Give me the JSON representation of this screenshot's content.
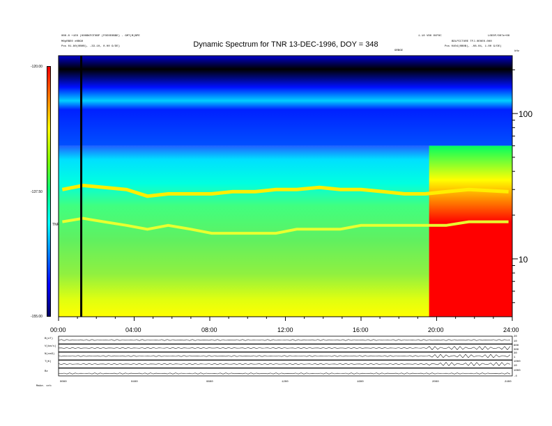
{
  "header": {
    "left_line1": "000.0 +1E0 (000BKFOT0BP (F0E0E0BBE) - GMT(M)BPE",
    "left_line2": "M0pRBE0 e0BG0",
    "left_line3": "Pos 01.80(0B0B), -33.10, 0.00 G/DE)",
    "right_line1": "1.10 V00 0VF0C",
    "right_line2": "L0E0F/007e+00",
    "right_line3": "BDLPICTURE TFJ.0E0E0.000",
    "right_line4": "Pos 0404(0B0B), -08.04, 1.00 G/DE)",
    "top_small_label": "GRBGE",
    "corner_label": "kHz"
  },
  "colorbar": {
    "ticks": [
      "-120.00",
      "-137.50",
      "-155.00"
    ],
    "label": "TNR",
    "colors": [
      "#000066",
      "#0000ff",
      "#0080ff",
      "#00ffff",
      "#00ff80",
      "#80ff00",
      "#ffff00",
      "#ff8000",
      "#ff0000"
    ]
  },
  "chart_data": [
    {
      "type": "heatmap",
      "title": "Dynamic Spectrum for TNR 13-DEC-1996, DOY = 348",
      "xlabel": "",
      "ylabel": "kHz",
      "x_tick_labels": [
        "00:00",
        "04:00",
        "08:00",
        "12:00",
        "16:00",
        "20:00",
        "24:00"
      ],
      "x_range_hours": [
        0,
        24
      ],
      "y_scale": "log",
      "y_tick_labels": [
        "100",
        "10"
      ],
      "y_range_khz": [
        4,
        250
      ],
      "z_range": [
        -155.0,
        -120.0
      ],
      "z_label": "TNR",
      "features": {
        "upper_band_khz_above": 60,
        "upper_band_level": "low (blue/black)",
        "emission_line_high_khz": [
          30,
          32,
          31,
          30,
          27,
          28,
          28,
          28,
          29,
          29,
          30,
          30,
          31,
          30,
          30,
          29,
          28,
          28,
          29,
          30,
          29
        ],
        "emission_line_low_khz": [
          18,
          19,
          18,
          17,
          16,
          17,
          16,
          15,
          15,
          15,
          15,
          16,
          16,
          16,
          17,
          17,
          17,
          17,
          17,
          18,
          18
        ],
        "line_times_hours": [
          0.2,
          1.3,
          2.4,
          3.6,
          4.7,
          5.8,
          7.0,
          8.1,
          9.2,
          10.4,
          11.5,
          12.6,
          13.8,
          14.9,
          16.0,
          17.2,
          18.3,
          19.4,
          20.5,
          21.7,
          23.8
        ],
        "intense_region_hours": [
          19.6,
          24.0
        ],
        "black_line_hours": 1.2
      }
    },
    {
      "type": "line",
      "panels": [
        {
          "left_label": "B(nT)",
          "right_ticks": [
            "20",
            "10"
          ]
        },
        {
          "left_label": "V(km/s)",
          "right_ticks": [
            "600",
            "300"
          ]
        },
        {
          "left_label": "N(cm3)",
          "right_ticks": [
            "30",
            "1"
          ]
        },
        {
          "left_label": "T(K)",
          "right_ticks": [
            "1000",
            "10"
          ]
        },
        {
          "left_label": "Bz",
          "right_ticks": [
            "1000",
            "-4"
          ]
        }
      ],
      "x_tick_labels": [
        "0000",
        "0400",
        "0800",
        "1200",
        "1600",
        "2000",
        "2400"
      ],
      "bottom_left_label": "Make. orb"
    }
  ]
}
